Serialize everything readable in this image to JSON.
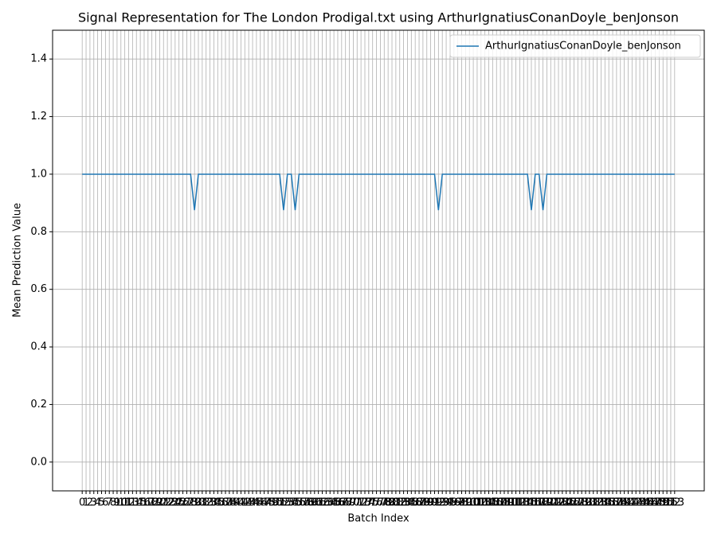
{
  "chart_data": {
    "type": "line",
    "title": "Signal Representation for The London Prodigal.txt using ArthurIgnatiusConanDoyle_benJonson",
    "x_label": "Batch Index",
    "y_label": "Mean Prediction Value",
    "x": [
      0,
      1,
      2,
      3,
      4,
      5,
      6,
      7,
      8,
      9,
      10,
      11,
      12,
      13,
      14,
      15,
      16,
      17,
      18,
      19,
      20,
      21,
      22,
      23,
      24,
      25,
      26,
      27,
      28,
      29,
      30,
      31,
      32,
      33,
      34,
      35,
      36,
      37,
      38,
      39,
      40,
      41,
      42,
      43,
      44,
      45,
      46,
      47,
      48,
      49,
      50,
      51,
      52,
      53,
      54,
      55,
      56,
      57,
      58,
      59,
      60,
      61,
      62,
      63,
      64,
      65,
      66,
      67,
      68,
      69,
      70,
      71,
      72,
      73,
      74,
      75,
      76,
      77,
      78,
      79,
      80,
      81,
      82,
      83,
      84,
      85,
      86,
      87,
      88,
      89,
      90,
      91,
      92,
      93,
      94,
      95,
      96,
      97,
      98,
      99,
      100,
      101,
      102,
      103,
      104,
      105,
      106,
      107,
      108,
      109,
      110,
      111,
      112,
      113,
      114,
      115,
      116,
      117,
      118,
      119,
      120,
      121,
      122,
      123,
      124,
      125,
      126,
      127,
      128,
      129,
      130,
      131,
      132,
      133,
      134,
      135,
      136,
      137,
      138,
      139,
      140,
      141,
      142,
      143,
      144,
      145,
      146,
      147,
      148,
      149,
      150,
      151,
      152,
      153
    ],
    "series": [
      {
        "name": "ArthurIgnatiusConanDoyle_benJonson",
        "color": "#1f77b4",
        "values": [
          1,
          1,
          1,
          1,
          1,
          1,
          1,
          1,
          1,
          1,
          1,
          1,
          1,
          1,
          1,
          1,
          1,
          1,
          1,
          1,
          1,
          1,
          1,
          1,
          1,
          1,
          1,
          1,
          1,
          0.875,
          1,
          1,
          1,
          1,
          1,
          1,
          1,
          1,
          1,
          1,
          1,
          1,
          1,
          1,
          1,
          1,
          1,
          1,
          1,
          1,
          1,
          1,
          0.875,
          1,
          1,
          0.875,
          1,
          1,
          1,
          1,
          1,
          1,
          1,
          1,
          1,
          1,
          1,
          1,
          1,
          1,
          1,
          1,
          1,
          1,
          1,
          1,
          1,
          1,
          1,
          1,
          1,
          1,
          1,
          1,
          1,
          1,
          1,
          1,
          1,
          1,
          1,
          1,
          0.875,
          1,
          1,
          1,
          1,
          1,
          1,
          1,
          1,
          1,
          1,
          1,
          1,
          1,
          1,
          1,
          1,
          1,
          1,
          1,
          1,
          1,
          1,
          1,
          0.875,
          1,
          1,
          0.875,
          1,
          1,
          1,
          1,
          1,
          1,
          1,
          1,
          1,
          1,
          1,
          1,
          1,
          1,
          1,
          1,
          1,
          1,
          1,
          1,
          1,
          1,
          1,
          1,
          1,
          1,
          1,
          1,
          1,
          1,
          1,
          1,
          1,
          1
        ]
      }
    ],
    "xlim": [
      -7.65,
      160.65
    ],
    "ylim": [
      -0.1,
      1.5
    ],
    "xticks": [
      0,
      1,
      2,
      3,
      4,
      5,
      6,
      7,
      8,
      9,
      10,
      11,
      12,
      13,
      14,
      15,
      16,
      17,
      18,
      19,
      20,
      21,
      22,
      23,
      24,
      25,
      26,
      27,
      28,
      29,
      30,
      31,
      32,
      33,
      34,
      35,
      36,
      37,
      38,
      39,
      40,
      41,
      42,
      43,
      44,
      45,
      46,
      47,
      48,
      49,
      50,
      51,
      52,
      53,
      54,
      55,
      56,
      57,
      58,
      59,
      60,
      61,
      62,
      63,
      64,
      65,
      66,
      67,
      68,
      69,
      70,
      71,
      72,
      73,
      74,
      75,
      76,
      77,
      78,
      79,
      80,
      81,
      82,
      83,
      84,
      85,
      86,
      87,
      88,
      89,
      90,
      91,
      92,
      93,
      94,
      95,
      96,
      97,
      98,
      99,
      100,
      101,
      102,
      103,
      104,
      105,
      106,
      107,
      108,
      109,
      110,
      111,
      112,
      113,
      114,
      115,
      116,
      117,
      118,
      119,
      120,
      121,
      122,
      123,
      124,
      125,
      126,
      127,
      128,
      129,
      130,
      131,
      132,
      133,
      134,
      135,
      136,
      137,
      138,
      139,
      140,
      141,
      142,
      143,
      144,
      145,
      146,
      147,
      148,
      149,
      150,
      151,
      152,
      153
    ],
    "yticks": [
      {
        "value": 0,
        "label": "0.0"
      },
      0.2,
      0.4,
      0.6,
      0.8,
      {
        "value": 1,
        "label": "1.0"
      },
      1.2,
      1.4
    ],
    "grid": true,
    "legend": "upper right"
  }
}
